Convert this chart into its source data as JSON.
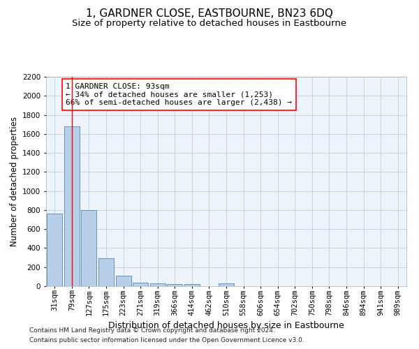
{
  "title": "1, GARDNER CLOSE, EASTBOURNE, BN23 6DQ",
  "subtitle": "Size of property relative to detached houses in Eastbourne",
  "xlabel": "Distribution of detached houses by size in Eastbourne",
  "ylabel": "Number of detached properties",
  "categories": [
    "31sqm",
    "79sqm",
    "127sqm",
    "175sqm",
    "223sqm",
    "271sqm",
    "319sqm",
    "366sqm",
    "414sqm",
    "462sqm",
    "510sqm",
    "558sqm",
    "606sqm",
    "654sqm",
    "702sqm",
    "750sqm",
    "798sqm",
    "846sqm",
    "894sqm",
    "941sqm",
    "989sqm"
  ],
  "values": [
    760,
    1680,
    800,
    290,
    110,
    40,
    30,
    20,
    20,
    0,
    30,
    0,
    0,
    0,
    0,
    0,
    0,
    0,
    0,
    0,
    0
  ],
  "bar_color": "#b8cfe8",
  "bar_edge_color": "#5585b5",
  "grid_color": "#c5d5e5",
  "annotation_box_text": "1 GARDNER CLOSE: 93sqm\n← 34% of detached houses are smaller (1,253)\n66% of semi-detached houses are larger (2,438) →",
  "vline_x_index": 1,
  "vline_color": "red",
  "footer_line1": "Contains HM Land Registry data © Crown copyright and database right 2024.",
  "footer_line2": "Contains public sector information licensed under the Open Government Licence v3.0.",
  "ylim": [
    0,
    2200
  ],
  "yticks": [
    0,
    200,
    400,
    600,
    800,
    1000,
    1200,
    1400,
    1600,
    1800,
    2000,
    2200
  ],
  "title_fontsize": 11,
  "subtitle_fontsize": 9.5,
  "xlabel_fontsize": 9,
  "ylabel_fontsize": 8.5,
  "tick_fontsize": 7.5,
  "annotation_fontsize": 8,
  "footer_fontsize": 6.5
}
